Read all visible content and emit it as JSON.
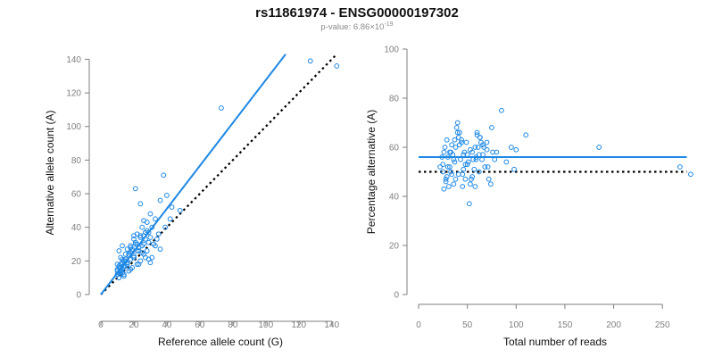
{
  "header": {
    "title": "rs11861974 - ENSG00000197302",
    "pvalue_label": "p-value: 6.86×10",
    "pvalue_exponent": "-19"
  },
  "colors": {
    "points": "#1e88e5",
    "fit_line": "#1e88e5",
    "reference_line": "#000000",
    "axis": "#7f7f7f"
  },
  "chart_data": [
    {
      "type": "scatter",
      "xlabel": "Reference allele count (G)",
      "ylabel": "Alternative allele count (A)",
      "xlim": [
        0,
        145
      ],
      "ylim": [
        0,
        145
      ],
      "xticks": [
        0,
        20,
        40,
        60,
        80,
        100,
        120,
        140
      ],
      "yticks": [
        0,
        20,
        40,
        60,
        80,
        100,
        120,
        140
      ],
      "fit_line": {
        "x": [
          0,
          112
        ],
        "y": [
          0,
          143
        ]
      },
      "reference_line": {
        "x": [
          0,
          143
        ],
        "y": [
          0,
          143
        ]
      },
      "points": {
        "x": [
          143,
          127,
          73,
          43,
          40,
          38,
          36,
          21,
          20,
          24,
          26,
          30,
          28,
          33,
          35,
          25,
          22,
          18,
          16,
          13,
          11,
          12,
          10,
          14,
          17,
          19,
          15,
          12,
          11,
          10,
          13,
          16,
          20,
          23,
          27,
          29,
          31,
          24,
          21,
          18,
          15,
          14,
          12,
          11,
          13,
          17,
          19,
          22,
          26,
          28,
          30,
          32,
          34,
          25,
          23,
          20,
          16,
          14,
          12,
          10,
          11,
          13,
          15,
          18,
          21,
          24,
          27,
          29,
          33,
          36,
          39,
          42,
          48,
          27,
          24,
          22,
          19,
          17,
          14,
          12,
          11,
          10,
          13,
          15,
          18,
          22,
          26,
          30,
          25,
          20,
          16,
          12,
          11,
          14,
          18,
          23,
          26,
          29,
          31,
          28,
          20
        ],
        "y": [
          136,
          139,
          111,
          52,
          59,
          71,
          56,
          63,
          35,
          54,
          44,
          48,
          43,
          45,
          36,
          40,
          36,
          29,
          27,
          29,
          26,
          22,
          18,
          20,
          24,
          27,
          20,
          16,
          13,
          12,
          15,
          18,
          22,
          28,
          33,
          37,
          40,
          35,
          30,
          25,
          21,
          17,
          14,
          16,
          19,
          23,
          26,
          30,
          35,
          38,
          34,
          30,
          33,
          29,
          26,
          23,
          19,
          16,
          18,
          15,
          17,
          21,
          24,
          28,
          31,
          34,
          37,
          31,
          29,
          27,
          40,
          45,
          50,
          22,
          20,
          18,
          16,
          14,
          11,
          12,
          10,
          14,
          13,
          17,
          21,
          26,
          30,
          19,
          25,
          22,
          19,
          14,
          16,
          12,
          15,
          18,
          24,
          21,
          22,
          26,
          33
        ]
      }
    },
    {
      "type": "scatter",
      "xlabel": "Total number of reads",
      "ylabel": "Percentage alternative (A)",
      "xlim": [
        0,
        280
      ],
      "ylim": [
        0,
        100
      ],
      "xticks": [
        0,
        50,
        100,
        150,
        200,
        250
      ],
      "yticks": [
        0,
        20,
        40,
        60,
        80,
        100
      ],
      "fit_line": {
        "x": [
          0,
          275
        ],
        "y": [
          56,
          56
        ]
      },
      "reference_line": {
        "x": [
          0,
          275
        ],
        "y": [
          50,
          50
        ]
      },
      "points": {
        "x": [
          279,
          268,
          185,
          110,
          100,
          95,
          85,
          75,
          70,
          65,
          62,
          60,
          58,
          55,
          53,
          50,
          48,
          46,
          44,
          42,
          40,
          38,
          36,
          34,
          32,
          30,
          28,
          26,
          25,
          24,
          22,
          27,
          29,
          31,
          33,
          35,
          37,
          39,
          41,
          43,
          45,
          47,
          49,
          51,
          54,
          57,
          59,
          61,
          63,
          66,
          68,
          72,
          78,
          80,
          90,
          98,
          52,
          44,
          40,
          36,
          32,
          28,
          60,
          64,
          70,
          56,
          48,
          42,
          38,
          34,
          30,
          26,
          58,
          62,
          66,
          50,
          46,
          41,
          37,
          33,
          29,
          25,
          55,
          59,
          63,
          67,
          71,
          74,
          76,
          53,
          45
        ],
        "y": [
          49,
          52,
          60,
          65,
          59,
          60,
          75,
          68,
          62,
          55,
          50,
          65,
          60,
          58,
          45,
          53,
          47,
          57,
          63,
          66,
          70,
          60,
          55,
          61,
          58,
          52,
          47,
          43,
          50,
          56,
          52,
          60,
          48,
          44,
          50,
          57,
          63,
          68,
          64,
          55,
          49,
          58,
          62,
          54,
          47,
          51,
          56,
          60,
          64,
          57,
          52,
          47,
          55,
          58,
          54,
          51,
          37,
          62,
          66,
          45,
          52,
          46,
          66,
          62,
          59,
          55,
          53,
          61,
          47,
          49,
          56,
          58,
          44,
          57,
          61,
          57,
          51,
          49,
          54,
          58,
          63,
          53,
          48,
          55,
          64,
          60,
          52,
          45,
          58,
          59,
          44
        ]
      }
    }
  ]
}
